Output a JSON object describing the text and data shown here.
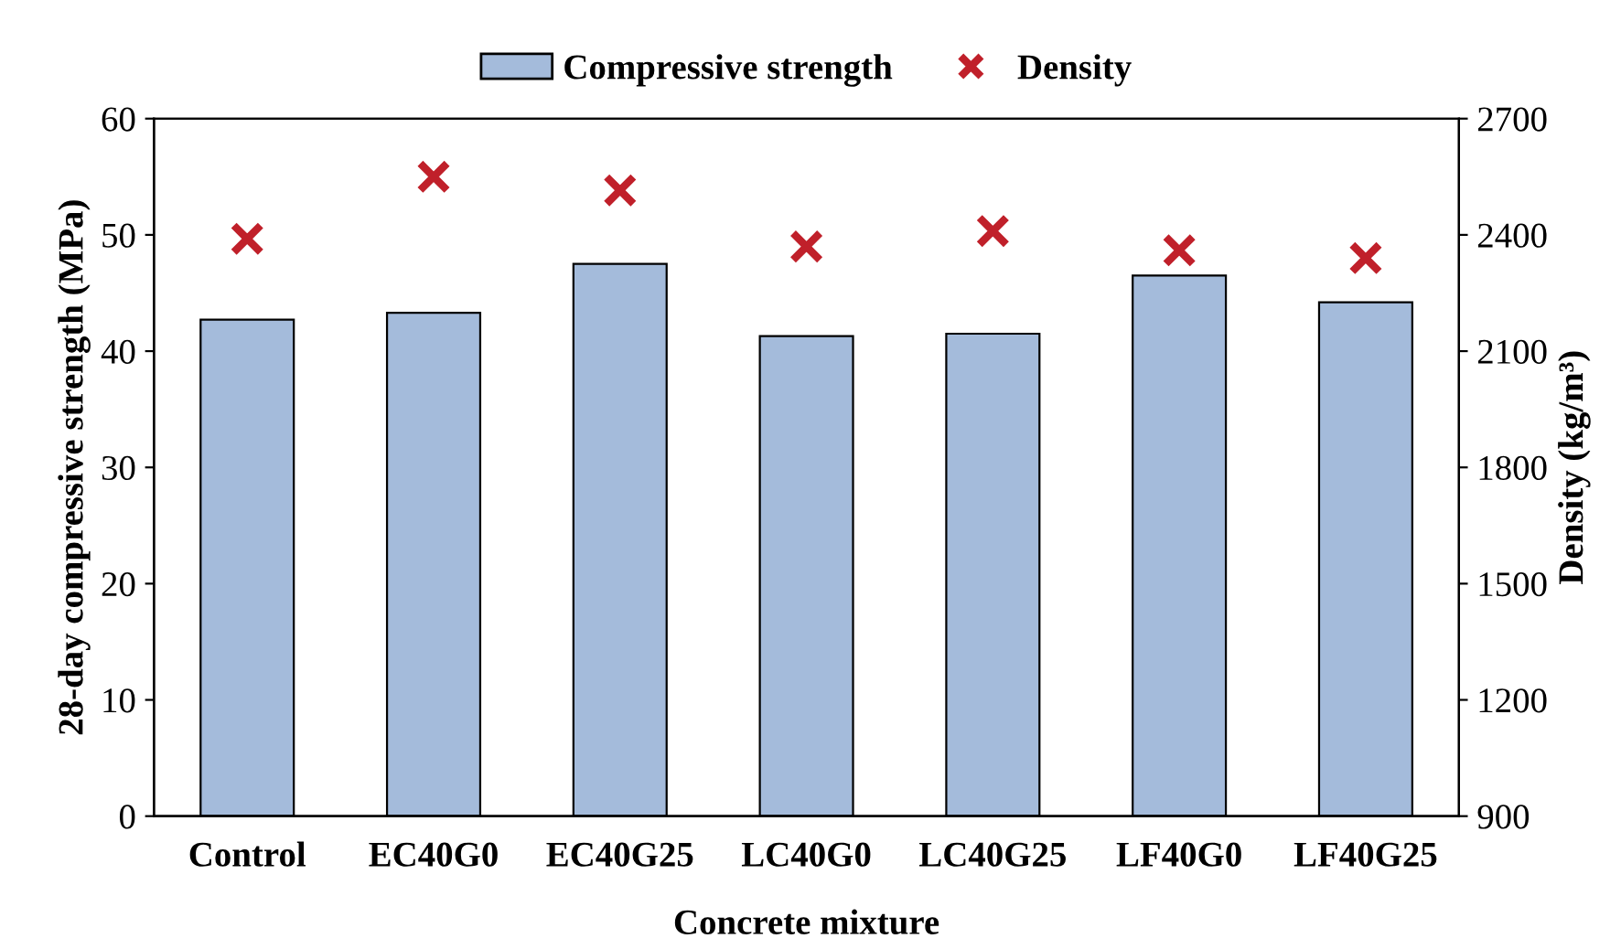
{
  "chart_data": {
    "type": "bar",
    "xlabel": "Concrete mixture",
    "ylabel": "28-day compressive strength (MPa)",
    "y2label": "Density (kg/m³)",
    "categories": [
      "Control",
      "EC40G0",
      "EC40G25",
      "LC40G0",
      "LC40G25",
      "LF40G0",
      "LF40G25"
    ],
    "series": [
      {
        "name": "Compressive strength",
        "color": "#a4bbdb",
        "values": [
          42.7,
          43.3,
          47.5,
          41.3,
          41.5,
          46.5,
          44.2
        ]
      },
      {
        "name": "Density",
        "type": "scatter",
        "axis": "y2",
        "marker": "cross",
        "color": "#c0202a",
        "values": [
          2390,
          2550,
          2515,
          2370,
          2410,
          2360,
          2340
        ]
      }
    ],
    "ylim": [
      0,
      60
    ],
    "yticks": [
      0,
      10,
      20,
      30,
      40,
      50,
      60
    ],
    "y2lim": [
      900,
      2700
    ],
    "y2ticks": [
      900,
      1200,
      1500,
      1800,
      2100,
      2400,
      2700
    ],
    "grid": false,
    "legend": "top"
  }
}
